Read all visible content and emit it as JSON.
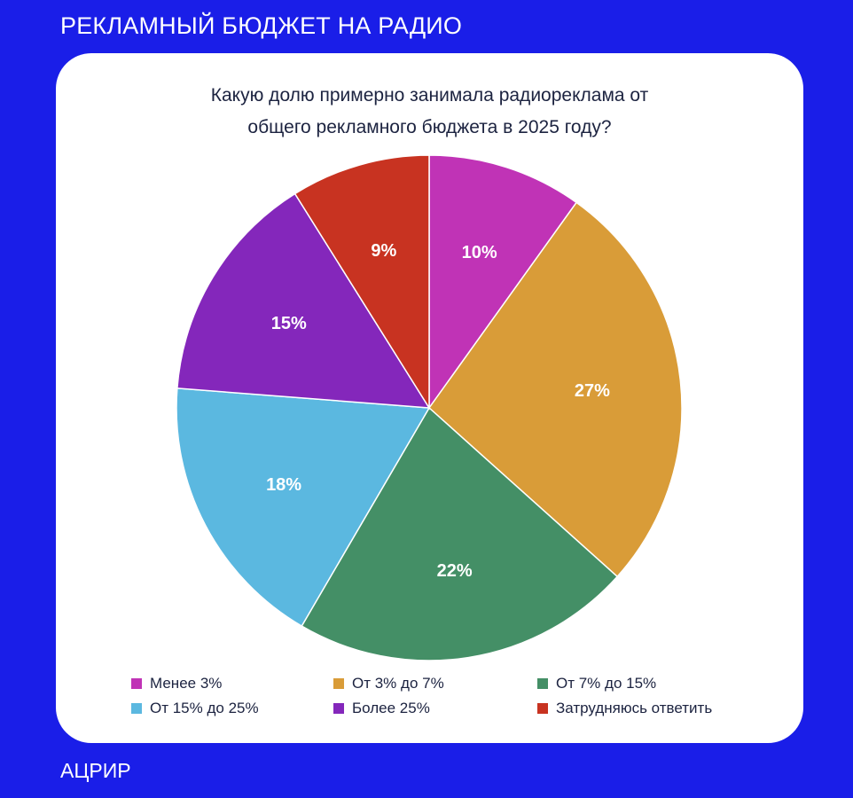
{
  "header": {
    "title": "РЕКЛАМНЫЙ БЮДЖЕТ НА РАДИО"
  },
  "footer": {
    "label": "АЦРИР"
  },
  "chart_data": {
    "type": "pie",
    "title_lines": [
      "Какую долю примерно занимала радиореклама от",
      "общего рекламного бюджета в 2025 году?"
    ],
    "slices": [
      {
        "label": "Менее 3%",
        "value": 10,
        "value_label": "10%",
        "color": "#c033b6"
      },
      {
        "label": "От 3% до 7%",
        "value": 27,
        "value_label": "27%",
        "color": "#d99c38"
      },
      {
        "label": "От 7% до 15%",
        "value": 22,
        "value_label": "22%",
        "color": "#448f66"
      },
      {
        "label": "От 15% до 25%",
        "value": 18,
        "value_label": "18%",
        "color": "#5bb8e0"
      },
      {
        "label": "Более 25%",
        "value": 15,
        "value_label": "15%",
        "color": "#8427bb"
      },
      {
        "label": "Затрудняюсь ответить",
        "value": 9,
        "value_label": "9%",
        "color": "#c83321"
      }
    ],
    "legend_position": "bottom"
  }
}
